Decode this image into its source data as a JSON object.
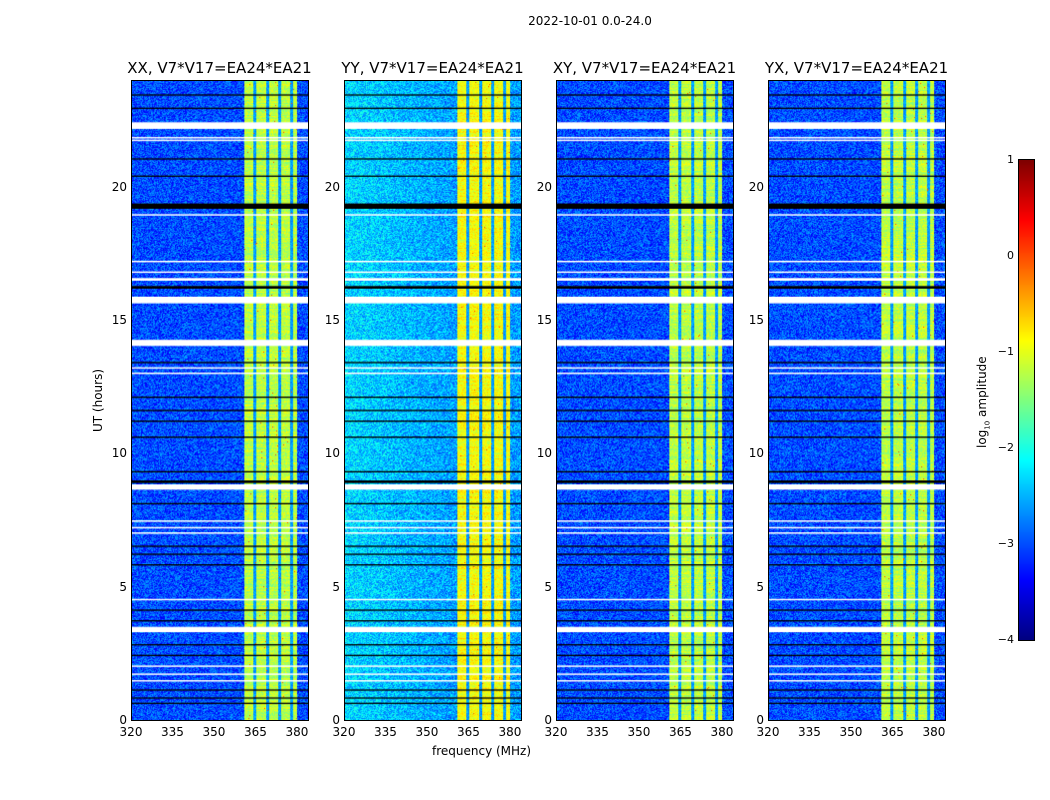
{
  "suptitle": "2022-10-01 0.0-24.0",
  "chart_data": {
    "type": "heatmap",
    "title": "2022-10-01 0.0-24.0",
    "xlabel": "frequency (MHz)",
    "ylabel": "UT (hours)",
    "xlim": [
      320,
      384
    ],
    "ylim": [
      0,
      24
    ],
    "xticks": [
      "320",
      "335",
      "350",
      "365",
      "380"
    ],
    "yticks": [
      "0",
      "5",
      "10",
      "15",
      "20"
    ],
    "colorbar": {
      "label": "log10 amplitude",
      "label_main": "log",
      "label_sub": "10",
      "label_rest": " amplitude",
      "range": [
        -4,
        1
      ],
      "ticks": [
        "1",
        "0",
        "−1",
        "−2",
        "−3",
        "−4"
      ],
      "colormap": "jet"
    },
    "panels": [
      {
        "title": "XX, V7*V17=EA24*EA21",
        "background_level": -3.0,
        "band_level": -1.2
      },
      {
        "title": "YY, V7*V17=EA24*EA21",
        "background_level": -2.6,
        "band_level": -0.9
      },
      {
        "title": "XY, V7*V17=EA24*EA21",
        "background_level": -3.0,
        "band_level": -1.2
      },
      {
        "title": "YX, V7*V17=EA24*EA21",
        "background_level": -3.0,
        "band_level": -1.2
      }
    ],
    "bright_band_mhz": [
      360.5,
      380
    ],
    "band_gaps_mhz": [
      364.5,
      369,
      373.5,
      378
    ],
    "flagged_white_hours": [
      [
        22.2,
        22.45
      ],
      [
        21.85,
        21.9
      ],
      [
        21.75,
        21.8
      ],
      [
        18.95,
        19.0
      ],
      [
        16.5,
        16.6
      ],
      [
        16.8,
        16.85
      ],
      [
        17.2,
        17.25
      ],
      [
        15.65,
        15.9
      ],
      [
        14.05,
        14.28
      ],
      [
        13.2,
        13.25
      ],
      [
        13.0,
        13.05
      ],
      [
        8.65,
        8.85
      ],
      [
        7.45,
        7.5
      ],
      [
        7.2,
        7.25
      ],
      [
        7.0,
        7.05
      ],
      [
        4.5,
        4.55
      ],
      [
        3.3,
        3.5
      ],
      [
        2.0,
        2.05
      ],
      [
        1.7,
        1.75
      ],
      [
        1.45,
        1.5
      ]
    ],
    "flagged_black_hours": [
      [
        23.45,
        23.5
      ],
      [
        22.95,
        23.0
      ],
      [
        21.05,
        21.1
      ],
      [
        20.4,
        20.45
      ],
      [
        19.2,
        19.4
      ],
      [
        16.2,
        16.3
      ],
      [
        13.4,
        13.45
      ],
      [
        12.1,
        12.15
      ],
      [
        11.6,
        11.65
      ],
      [
        11.2,
        11.25
      ],
      [
        10.6,
        10.65
      ],
      [
        9.3,
        9.35
      ],
      [
        8.9,
        9.0
      ],
      [
        8.1,
        8.15
      ],
      [
        6.5,
        6.55
      ],
      [
        6.2,
        6.25
      ],
      [
        5.8,
        5.85
      ],
      [
        4.1,
        4.15
      ],
      [
        3.7,
        3.75
      ],
      [
        2.8,
        2.85
      ],
      [
        2.4,
        2.45
      ],
      [
        1.1,
        1.15
      ],
      [
        0.8,
        0.85
      ],
      [
        0.6,
        0.65
      ]
    ]
  }
}
